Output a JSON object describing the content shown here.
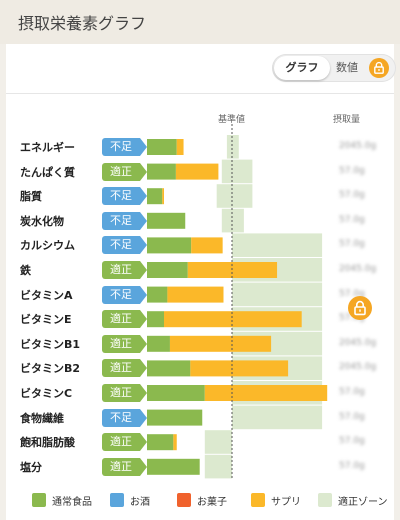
{
  "header": {
    "title": "摂取栄養素グラフ"
  },
  "toggle": {
    "graph_label": "グラフ",
    "value_label": "数値"
  },
  "columns": {
    "reference": "基準値",
    "intake": "摂取量"
  },
  "status_labels": {
    "low": "不足",
    "ok": "適正"
  },
  "colors": {
    "normal_food": "#8bb94e",
    "alcohol": "#5aa5dc",
    "snacks": "#f0622d",
    "supplement": "#fbb829",
    "proper_zone": "#dce9cf"
  },
  "rows": [
    {
      "name": "エネルギー",
      "status": "low",
      "amount": "2045.0g"
    },
    {
      "name": "たんぱく質",
      "status": "ok",
      "amount": "57.0g"
    },
    {
      "name": "脂質",
      "status": "low",
      "amount": "57.0g"
    },
    {
      "name": "炭水化物",
      "status": "low",
      "amount": "57.0g"
    },
    {
      "name": "カルシウム",
      "status": "low",
      "amount": "57.0g"
    },
    {
      "name": "鉄",
      "status": "ok",
      "amount": "2045.0g"
    },
    {
      "name": "ビタミンA",
      "status": "low",
      "amount": "57.0g"
    },
    {
      "name": "ビタミンE",
      "status": "ok",
      "amount": "57.0g"
    },
    {
      "name": "ビタミンB1",
      "status": "ok",
      "amount": "2045.0g"
    },
    {
      "name": "ビタミンB2",
      "status": "ok",
      "amount": "2045.0g"
    },
    {
      "name": "ビタミンC",
      "status": "ok",
      "amount": "57.0g"
    },
    {
      "name": "食物繊維",
      "status": "low",
      "amount": "57.0g"
    },
    {
      "name": "飽和脂肪酸",
      "status": "ok",
      "amount": "57.0g"
    },
    {
      "name": "塩分",
      "status": "ok",
      "amount": "57.0g"
    }
  ],
  "legend": [
    {
      "label": "通常食品",
      "color_key": "normal_food"
    },
    {
      "label": "お酒",
      "color_key": "alcohol"
    },
    {
      "label": "お菓子",
      "color_key": "snacks"
    },
    {
      "label": "サプリ",
      "color_key": "supplement"
    },
    {
      "label": "適正ゾーン",
      "color_key": "proper_zone"
    }
  ],
  "chart_data": {
    "type": "bar",
    "categories": [
      "エネルギー",
      "たんぱく質",
      "脂質",
      "炭水化物",
      "カルシウム",
      "鉄",
      "ビタミンA",
      "ビタミンE",
      "ビタミンB1",
      "ビタミンB2",
      "ビタミンC",
      "食物繊維",
      "飽和脂肪酸",
      "塩分"
    ],
    "reference_value_pct": 100,
    "value_unit": "% of 基準値",
    "series": [
      {
        "name": "通常食品",
        "color": "#8bb94e",
        "values": [
          35,
          34,
          18,
          45,
          52,
          48,
          24,
          20,
          27,
          51,
          68,
          65,
          31,
          62
        ]
      },
      {
        "name": "サプリ",
        "color": "#fbb829",
        "values": [
          8,
          50,
          2,
          0,
          37,
          105,
          66,
          162,
          119,
          115,
          144,
          0,
          4,
          0
        ]
      }
    ],
    "proper_zone_pct": [
      [
        94,
        108
      ],
      [
        88,
        124
      ],
      [
        82,
        124
      ],
      [
        88,
        114
      ],
      [
        100,
        206
      ],
      [
        100,
        206
      ],
      [
        100,
        206
      ],
      [
        100,
        206
      ],
      [
        100,
        206
      ],
      [
        100,
        206
      ],
      [
        100,
        206
      ],
      [
        100,
        206
      ],
      [
        68,
        100
      ],
      [
        68,
        100
      ]
    ]
  }
}
